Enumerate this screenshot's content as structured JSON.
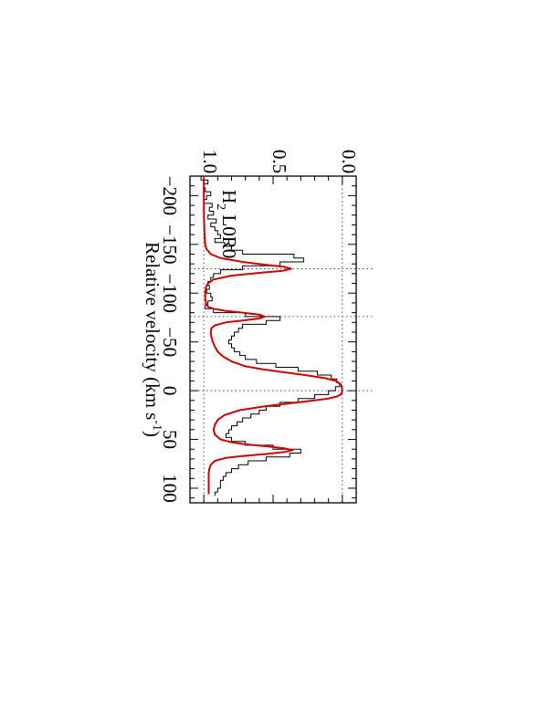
{
  "chart_data": {
    "type": "line",
    "orientation": "page rotated 90 degrees clockwise",
    "xlabel": "Relative velocity (km s",
    "xlabel_sup": "-1",
    "xlabel_close": ")",
    "ylabel": "",
    "annotation": {
      "main": "H",
      "sub": "2",
      "rest": " L0R0"
    },
    "xlim": [
      -220,
      115
    ],
    "ylim": [
      -0.1,
      1.1
    ],
    "x_ticks": [
      {
        "value": -200,
        "label": "−200"
      },
      {
        "value": -150,
        "label": "−150"
      },
      {
        "value": -100,
        "label": "−100"
      },
      {
        "value": -50,
        "label": "−50"
      },
      {
        "value": 0,
        "label": "0"
      },
      {
        "value": 50,
        "label": "50"
      },
      {
        "value": 100,
        "label": "100"
      }
    ],
    "y_ticks": [
      {
        "value": 0.0,
        "label": "0.0"
      },
      {
        "value": 0.5,
        "label": "0.5"
      },
      {
        "value": 1.0,
        "label": "1.0"
      }
    ],
    "x_minor_step": 10,
    "y_minor_step": 0.1,
    "reference_lines": {
      "continuum": 1.0,
      "zero": 0.0,
      "velocities": [
        -125,
        -76,
        0
      ]
    },
    "colors": {
      "data": "#000000",
      "model": "#cc0000",
      "reference": "#4040cc"
    },
    "series": [
      {
        "role": "data",
        "style": "histogram",
        "x": [
          -218,
          -214,
          -210,
          -206,
          -202,
          -198,
          -194,
          -190,
          -186,
          -182,
          -178,
          -174,
          -170,
          -166,
          -162,
          -158,
          -154,
          -150,
          -146,
          -142,
          -138,
          -134,
          -130,
          -126,
          -122,
          -118,
          -114,
          -110,
          -106,
          -102,
          -98,
          -94,
          -90,
          -86,
          -82,
          -78,
          -74,
          -70,
          -66,
          -62,
          -58,
          -54,
          -50,
          -46,
          -42,
          -38,
          -34,
          -30,
          -26,
          -22,
          -18,
          -14,
          -10,
          -6,
          -2,
          2,
          6,
          10,
          14,
          18,
          22,
          26,
          30,
          34,
          38,
          42,
          46,
          50,
          54,
          58,
          62,
          66,
          70,
          74,
          78,
          82,
          86,
          90,
          94,
          98,
          102,
          106
        ],
        "y": [
          1.02,
          0.97,
          1.0,
          0.99,
          0.95,
          0.98,
          1.0,
          0.94,
          0.96,
          0.93,
          0.97,
          0.91,
          0.95,
          0.92,
          0.9,
          0.88,
          0.92,
          0.85,
          0.8,
          0.72,
          0.35,
          0.28,
          0.45,
          0.72,
          0.88,
          0.93,
          0.95,
          0.97,
          0.96,
          0.98,
          0.95,
          0.94,
          0.97,
          0.99,
          0.93,
          0.7,
          0.45,
          0.55,
          0.72,
          0.75,
          0.78,
          0.8,
          0.82,
          0.8,
          0.78,
          0.74,
          0.7,
          0.62,
          0.48,
          0.32,
          0.18,
          0.08,
          0.04,
          0.02,
          0.05,
          0.1,
          0.2,
          0.32,
          0.45,
          0.55,
          0.6,
          0.66,
          0.72,
          0.76,
          0.8,
          0.82,
          0.84,
          0.8,
          0.7,
          0.5,
          0.3,
          0.38,
          0.55,
          0.68,
          0.75,
          0.8,
          0.84,
          0.86,
          0.88,
          0.88,
          0.9,
          0.92
        ]
      },
      {
        "role": "model",
        "style": "line",
        "x": [
          -218,
          -200,
          -180,
          -160,
          -150,
          -145,
          -140,
          -136,
          -132,
          -129,
          -127,
          -125,
          -123,
          -121,
          -118,
          -114,
          -110,
          -106,
          -100,
          -95,
          -90,
          -86,
          -84,
          -82,
          -80,
          -78,
          -76,
          -74,
          -72,
          -70,
          -67,
          -64,
          -60,
          -55,
          -50,
          -45,
          -40,
          -35,
          -30,
          -25,
          -22,
          -19,
          -16,
          -13,
          -10,
          -7,
          -4,
          -2,
          0,
          2,
          4,
          6,
          8,
          10,
          13,
          16,
          20,
          25,
          30,
          35,
          40,
          45,
          50,
          53,
          55,
          57,
          59,
          61,
          63,
          65,
          67,
          69,
          72,
          76,
          80,
          85,
          90,
          95,
          100,
          106
        ],
        "y": [
          1.0,
          1.0,
          0.999,
          0.995,
          0.99,
          0.98,
          0.95,
          0.88,
          0.72,
          0.55,
          0.42,
          0.37,
          0.43,
          0.58,
          0.8,
          0.93,
          0.97,
          0.985,
          0.99,
          0.99,
          0.985,
          0.97,
          0.93,
          0.85,
          0.72,
          0.6,
          0.56,
          0.6,
          0.72,
          0.84,
          0.92,
          0.945,
          0.95,
          0.945,
          0.935,
          0.92,
          0.9,
          0.86,
          0.8,
          0.7,
          0.58,
          0.43,
          0.27,
          0.13,
          0.05,
          0.015,
          0.005,
          0.002,
          0.002,
          0.004,
          0.012,
          0.04,
          0.1,
          0.2,
          0.38,
          0.56,
          0.74,
          0.85,
          0.9,
          0.92,
          0.93,
          0.92,
          0.88,
          0.8,
          0.7,
          0.55,
          0.42,
          0.36,
          0.42,
          0.56,
          0.72,
          0.84,
          0.92,
          0.95,
          0.96,
          0.965,
          0.965,
          0.965,
          0.965,
          0.965
        ]
      }
    ]
  }
}
